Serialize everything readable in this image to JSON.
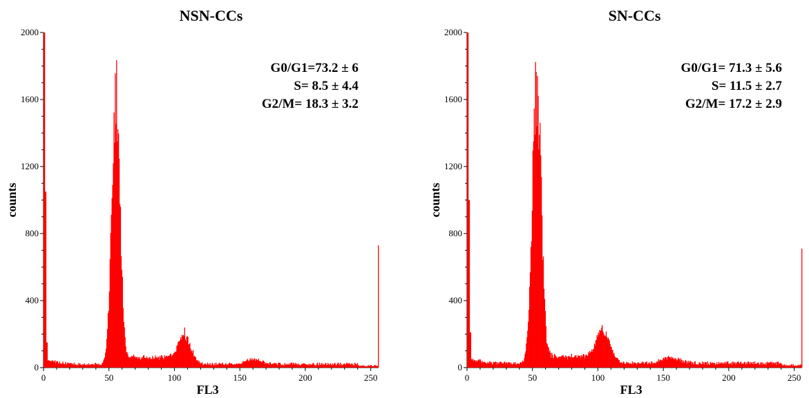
{
  "chart_data": [
    {
      "type": "bar",
      "title": "NSN-CCs",
      "xlabel": "FL3",
      "ylabel": "counts",
      "xlim": [
        0,
        256
      ],
      "ylim": [
        0,
        2000
      ],
      "xticks": [
        "0",
        "50",
        "100",
        "150",
        "200",
        "250"
      ],
      "yticks": [
        "0",
        "400",
        "800",
        "1200",
        "1600",
        "2000"
      ],
      "annotations": [
        "G0/G1=73.2 ± 6",
        "S= 8.5 ± 4.4",
        "G2/M= 18.3 ± 3.2"
      ],
      "color": "#ff0000",
      "peaks": [
        {
          "x": 55,
          "height": 1600,
          "sigma": 3.2
        },
        {
          "x": 108,
          "height": 160,
          "sigma": 4.5
        },
        {
          "x": 160,
          "height": 28,
          "sigma": 6
        }
      ],
      "edge_values": {
        "x0": 2000,
        "x1": 1050,
        "x2": 150,
        "x255": 730
      },
      "baseline": 20
    },
    {
      "type": "bar",
      "title": "SN-CCs",
      "xlabel": "FL3",
      "ylabel": "counts",
      "xlim": [
        0,
        256
      ],
      "ylim": [
        0,
        2000
      ],
      "xticks": [
        "0",
        "50",
        "100",
        "150",
        "200",
        "250"
      ],
      "yticks": [
        "0",
        "400",
        "800",
        "1200",
        "1600",
        "2000"
      ],
      "annotations": [
        "G0/G1= 71.3 ± 5.6",
        "S= 11.5 ± 2.7",
        "G2/M= 17.2 ± 2.9"
      ],
      "color": "#ff0000",
      "peaks": [
        {
          "x": 53,
          "height": 1650,
          "sigma": 3.4
        },
        {
          "x": 104,
          "height": 180,
          "sigma": 5
        },
        {
          "x": 155,
          "height": 32,
          "sigma": 7
        }
      ],
      "edge_values": {
        "x0": 2000,
        "x1": 1000,
        "x2": 210,
        "x255": 710
      },
      "baseline": 25
    }
  ]
}
